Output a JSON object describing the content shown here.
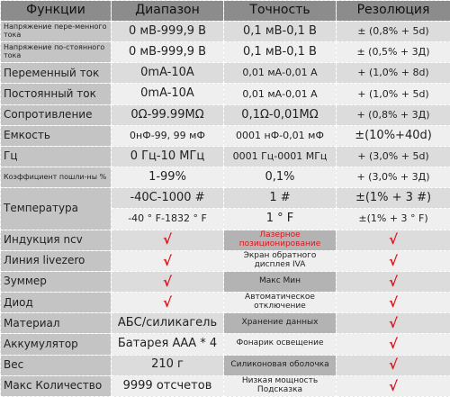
{
  "table": {
    "header": [
      "Функции",
      "Диапазон",
      "Точность",
      "Резолюция"
    ],
    "rows": [
      [
        "Напряжение пере-менного тока",
        "0 мВ-999,9 В",
        "0,1 мВ-0,1 В",
        "± (0,8% + 5d)"
      ],
      [
        "Напряжение по-стоянного тока",
        "0 мВ-999,9 В",
        "0,1 мВ-0,1 В",
        "± (0,5% + 3Д)"
      ],
      [
        "Переменный ток",
        "0mA-10A",
        "0,01 мА-0,01 А",
        "+ (1,0% + 8d)"
      ],
      [
        "Постоянный ток",
        "0mA-10A",
        "0,01 мА-0,01 А",
        "+ (1,0% + 5d)"
      ],
      [
        "Сопротивление",
        "0Ω-99.99MΩ",
        "0,1Ω-0,01MΩ",
        "+ (0,8% + 3Д)"
      ],
      [
        "Емкость",
        "0нФ-99, 99 мФ",
        "0001 нФ-0,01 мФ",
        "±(10%+40d)"
      ],
      [
        "Гц",
        "0 Гц-10 МГц",
        "0001 Гц-0001 МГц",
        "+ (3,0% + 5d)"
      ],
      [
        "Коэффициент пошли-ны %",
        "1-99%",
        "0,1%",
        "+ (3,0% + 3Д)"
      ],
      [
        "Температура",
        "-40C-1000 #",
        "1 #",
        "±(1% + 3 #)"
      ],
      [
        "-40 ° F-1832 ° F",
        "1 ° F",
        "±(1% + 3 ° F)"
      ]
    ],
    "features": [
      [
        "Индукция ncv",
        "√",
        "Лазерное позиционирование",
        "√"
      ],
      [
        "Линия livezero",
        "√",
        "Экран обратного дисплея IVA",
        "√"
      ],
      [
        "Зуммер",
        "√",
        "Макс Мин",
        "√"
      ],
      [
        "Диод",
        "√",
        "Автоматическое отключение",
        "√"
      ],
      [
        "Материал",
        "АБС/силикагель",
        "Хранение данных",
        "√"
      ],
      [
        "Аккумулятор",
        "Батарея ААА * 4",
        "Фонарик освещение",
        "√"
      ],
      [
        "Вес",
        "210 г",
        "Силиконовая оболочка",
        "√"
      ],
      [
        "Макс Количество",
        "9999 отсчетов",
        "Низкая мощность Подсказка",
        "√"
      ]
    ]
  }
}
